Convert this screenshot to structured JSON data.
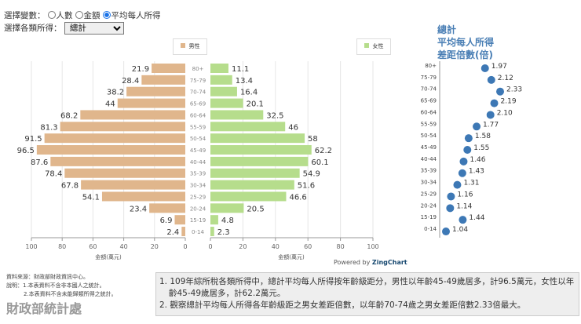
{
  "controls": {
    "variable_label": "選擇變數：",
    "options": [
      "人數",
      "金額",
      "平均每人所得"
    ],
    "selected": "平均每人所得",
    "category_label": "選擇各類所得：",
    "category_value": "總計"
  },
  "legend": {
    "male": "男性",
    "female": "女性",
    "male_color": "#e0b68c",
    "female_color": "#b6dd8c"
  },
  "chart_data": [
    {
      "type": "bar",
      "orientation": "horizontal-pyramid",
      "categories": [
        "80+",
        "75-79",
        "70-74",
        "65-69",
        "60-64",
        "55-59",
        "50-54",
        "45-49",
        "40-44",
        "35-39",
        "30-34",
        "25-29",
        "20-24",
        "15-19",
        "0-14"
      ],
      "series": [
        {
          "name": "男性",
          "values": [
            21.9,
            28.4,
            38.2,
            44,
            68.2,
            81.3,
            91.5,
            96.5,
            87.6,
            78.4,
            67.8,
            54.1,
            23.4,
            6.9,
            2.4
          ]
        },
        {
          "name": "女性",
          "values": [
            11.1,
            13.4,
            16.4,
            20.1,
            32.5,
            46,
            58,
            62.2,
            60.1,
            54.9,
            51.6,
            46.6,
            20.5,
            4.8,
            2.3
          ]
        }
      ],
      "xlabel": "金額(萬元)",
      "xlim": [
        0,
        100
      ],
      "xticks": [
        0,
        20,
        40,
        60,
        80,
        100
      ],
      "grid": true,
      "legend": "top"
    },
    {
      "type": "scatter",
      "title": [
        "總計",
        "平均每人所得",
        "差距倍數(倍)"
      ],
      "categories": [
        "80+",
        "75-79",
        "70-74",
        "65-69",
        "60-64",
        "55-59",
        "50-54",
        "45-49",
        "40-44",
        "35-39",
        "30-34",
        "25-29",
        "20-24",
        "15-19",
        "0-14"
      ],
      "values": [
        1.97,
        2.12,
        2.33,
        2.19,
        2.1,
        1.77,
        1.58,
        1.55,
        1.46,
        1.43,
        1.31,
        1.16,
        1.14,
        1.44,
        1.04
      ],
      "labels": [
        "1.97",
        "2.12",
        "2.33",
        "2.19",
        "2.10",
        "1.77",
        "1.58",
        "1.55",
        "1.46",
        "1.43",
        "1.31",
        "1.16",
        "1.14",
        "1.44",
        "1.04"
      ],
      "color": "#3d78b5"
    }
  ],
  "powered": {
    "prefix": "Powered by",
    "brand": "ZingChart"
  },
  "source": [
    "資料來源：財政部財政資訊中心。",
    "說明：1.本表資料不含非本國人之統計。",
    "2.本表資料不含未能歸類所得之統計。"
  ],
  "logo": "財政部統計處",
  "notes": [
    "1. 109年綜所稅各類所得中，總計平均每人所得按年齡級距分，男性以年齡45-49歲居多，計96.5萬元，女性以年齡45-49歲居多，計62.2萬元。",
    "2. 觀察總計平均每人所得各年齡級距之男女差距倍數，以年齡70-74歲之男女差距倍數2.33倍最大。"
  ]
}
